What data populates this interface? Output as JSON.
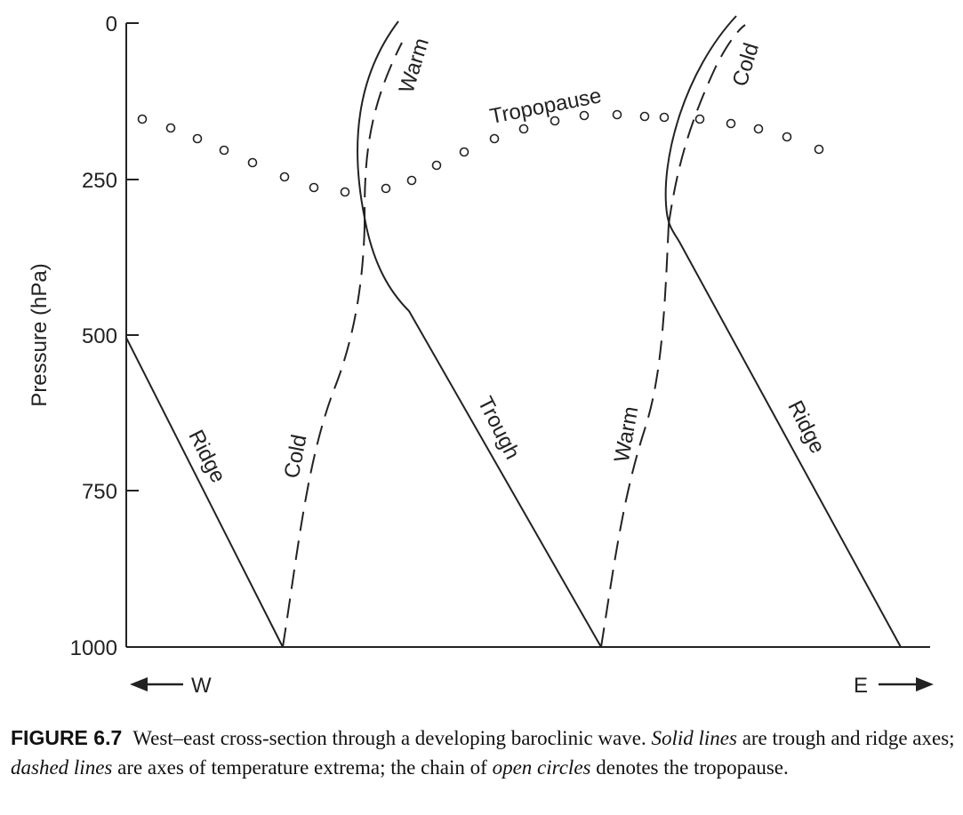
{
  "diagram": {
    "y_axis": {
      "title": "Pressure (hPa)",
      "ticks": [
        "0",
        "250",
        "500",
        "750",
        "1000"
      ]
    },
    "directions": {
      "west": "W",
      "east": "E"
    },
    "labels": {
      "ridge_west": "Ridge",
      "cold_low": "Cold",
      "warm_high": "Warm",
      "tropopause": "Tropopause",
      "trough": "Trough",
      "warm_low": "Warm",
      "cold_high": "Cold",
      "ridge_east": "Ridge"
    }
  },
  "caption": {
    "figure_number": "FIGURE 6.7",
    "text_1": "West–east cross-section through a developing baroclinic wave. ",
    "em_1": "Solid lines",
    "text_2": " are trough and ridge axes; ",
    "em_2": "dashed lines",
    "text_3": " are axes of temperature extrema; the chain of ",
    "em_3": "open circles",
    "text_4": " denotes the tropopause."
  }
}
